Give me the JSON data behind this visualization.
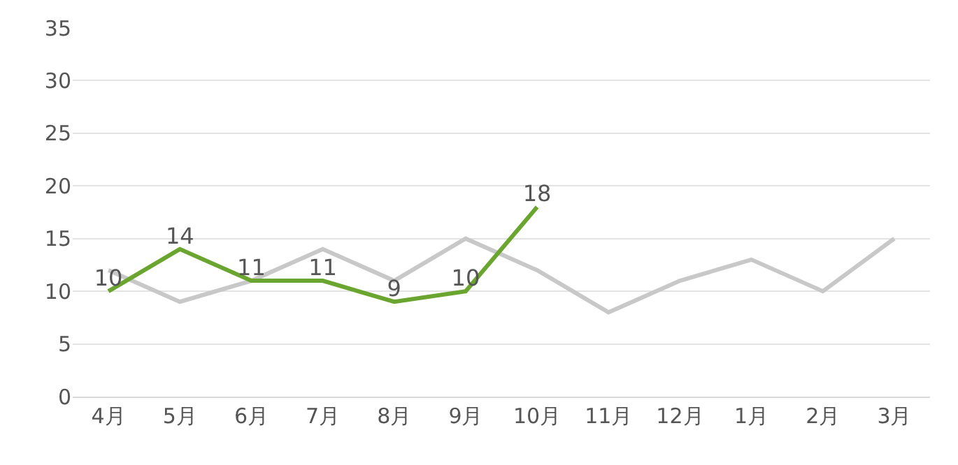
{
  "chart_data": {
    "type": "line",
    "categories": [
      "4月",
      "5月",
      "6月",
      "7月",
      "8月",
      "9月",
      "10月",
      "11月",
      "12月",
      "1月",
      "2月",
      "3月"
    ],
    "series": [
      {
        "color": "#c8c8c8",
        "values": [
          12,
          9,
          11,
          14,
          11,
          15,
          12,
          8,
          11,
          13,
          10,
          15
        ]
      },
      {
        "color": "#6aa62f",
        "values": [
          10,
          14,
          11,
          11,
          9,
          10,
          18,
          null,
          null,
          null,
          null,
          null
        ],
        "value_labels": [
          "10",
          "14",
          "11",
          "11",
          "9",
          "10",
          "18",
          null,
          null,
          null,
          null,
          null
        ]
      }
    ],
    "ylim": [
      0,
      35
    ],
    "yticks": [
      0,
      5,
      10,
      15,
      20,
      25,
      30,
      35
    ],
    "grid": "y",
    "marker": "none",
    "line_style": "solid"
  }
}
